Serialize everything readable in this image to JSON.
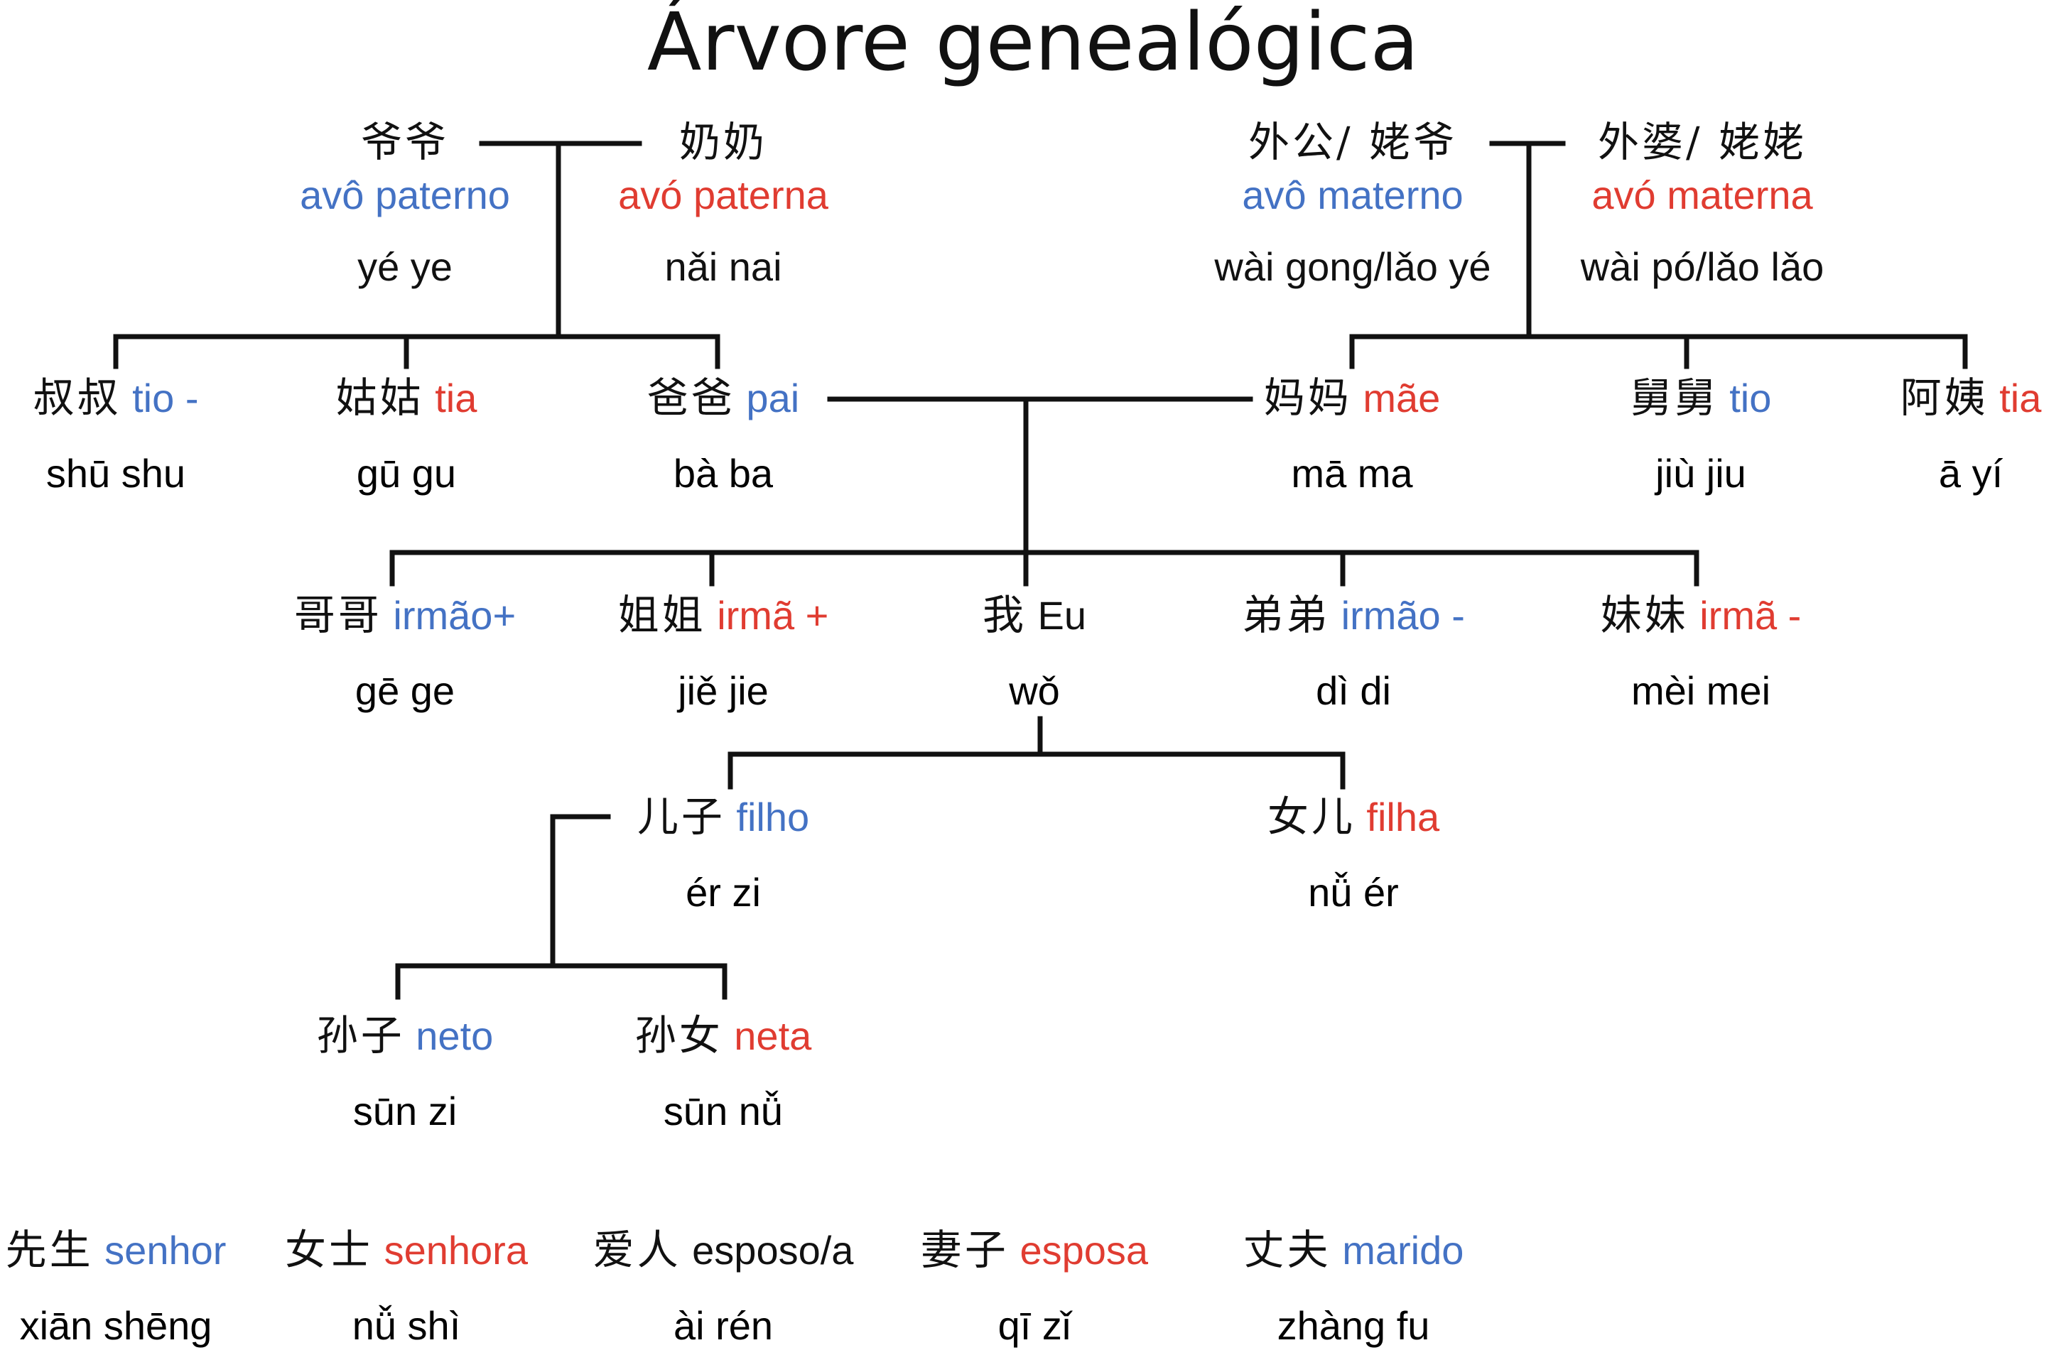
{
  "title": "Árvore genealógica",
  "colors": {
    "male": "#4472c4",
    "female": "#e03c31",
    "text": "#111111",
    "line": "#111111"
  },
  "grandparents": {
    "paternal_grandfather": {
      "hanzi": "爷爷",
      "label": "avô paterno",
      "pinyin": "yé ye"
    },
    "paternal_grandmother": {
      "hanzi": "奶奶",
      "label": "avó paterna",
      "pinyin": "nǎi nai"
    },
    "maternal_grandfather": {
      "hanzi": "外公/ 姥爷",
      "label": "avô materno",
      "pinyin": "wài gong/lǎo yé"
    },
    "maternal_grandmother": {
      "hanzi": "外婆/ 姥姥",
      "label": "avó materna",
      "pinyin": "wài pó/lǎo lǎo"
    }
  },
  "parents_generation": {
    "uncle_paternal": {
      "hanzi": "叔叔",
      "label": "tio -",
      "pinyin": "shū shu"
    },
    "aunt_paternal": {
      "hanzi": "姑姑",
      "label": "tia",
      "pinyin": "gū gu"
    },
    "father": {
      "hanzi": "爸爸",
      "label": "pai",
      "pinyin": "bà ba"
    },
    "mother": {
      "hanzi": "妈妈",
      "label": "mãe",
      "pinyin": "mā ma"
    },
    "uncle_maternal": {
      "hanzi": "舅舅",
      "label": "tio",
      "pinyin": "jiù jiu"
    },
    "aunt_maternal": {
      "hanzi": "阿姨",
      "label": "tia",
      "pinyin": "ā yí"
    }
  },
  "siblings": {
    "older_brother": {
      "hanzi": "哥哥",
      "label": "irmão+",
      "pinyin": "gē ge"
    },
    "older_sister": {
      "hanzi": "姐姐",
      "label": "irmã +",
      "pinyin": "jiě jie"
    },
    "self": {
      "hanzi": "我",
      "label": "Eu",
      "pinyin": "wǒ"
    },
    "younger_brother": {
      "hanzi": "弟弟",
      "label": "irmão -",
      "pinyin": "dì di"
    },
    "younger_sister": {
      "hanzi": "妹妹",
      "label": "irmã -",
      "pinyin": "mèi mei"
    }
  },
  "children": {
    "son": {
      "hanzi": "儿子",
      "label": "filho",
      "pinyin": "ér zi"
    },
    "daughter": {
      "hanzi": "女儿",
      "label": "filha",
      "pinyin": "nǚ ér"
    }
  },
  "grandchildren": {
    "grandson": {
      "hanzi": "孙子",
      "label": "neto",
      "pinyin": "sūn zi"
    },
    "granddaughter": {
      "hanzi": "孙女",
      "label": "neta",
      "pinyin": "sūn nǚ"
    }
  },
  "terms": {
    "mister": {
      "hanzi": "先生",
      "label": "senhor",
      "pinyin": "xiān shēng"
    },
    "madam": {
      "hanzi": "女士",
      "label": "senhora",
      "pinyin": "nǚ shì"
    },
    "spouse": {
      "hanzi": "爱人",
      "label": "esposo/a",
      "pinyin": "ài rén"
    },
    "wife": {
      "hanzi": "妻子",
      "label": "esposa",
      "pinyin": "qī zǐ"
    },
    "husband": {
      "hanzi": "丈夫",
      "label": "marido",
      "pinyin": "zhàng fu"
    }
  }
}
